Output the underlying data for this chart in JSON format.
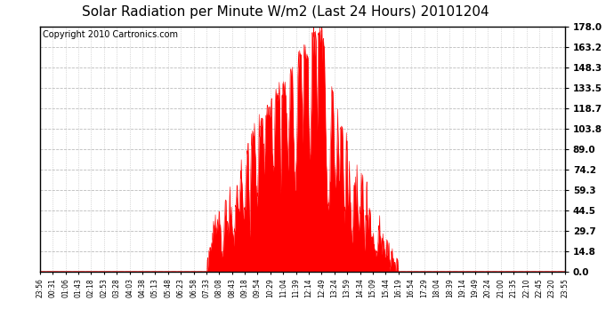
{
  "title": "Solar Radiation per Minute W/m2 (Last 24 Hours) 20101204",
  "copyright_text": "Copyright 2010 Cartronics.com",
  "title_fontsize": 11,
  "copyright_fontsize": 7,
  "background_color": "#ffffff",
  "plot_bg_color": "#ffffff",
  "line_color": "#ff0000",
  "fill_color": "#ff0000",
  "grid_color": "#bbbbbb",
  "border_color": "#000000",
  "ymin": 0.0,
  "ymax": 178.0,
  "yticks": [
    0.0,
    14.8,
    29.7,
    44.5,
    59.3,
    74.2,
    89.0,
    103.8,
    118.7,
    133.5,
    148.3,
    163.2,
    178.0
  ],
  "x_tick_labels": [
    "23:56",
    "00:31",
    "01:06",
    "01:43",
    "02:18",
    "02:53",
    "03:28",
    "04:03",
    "04:38",
    "05:13",
    "05:48",
    "06:23",
    "06:58",
    "07:33",
    "08:08",
    "08:43",
    "09:18",
    "09:54",
    "10:29",
    "11:04",
    "11:39",
    "12:14",
    "12:49",
    "13:24",
    "13:59",
    "14:34",
    "15:09",
    "15:44",
    "16:19",
    "16:54",
    "17:29",
    "18:04",
    "18:39",
    "19:14",
    "19:49",
    "20:24",
    "21:00",
    "21:35",
    "22:10",
    "22:45",
    "23:20",
    "23:55"
  ],
  "num_points": 1440
}
